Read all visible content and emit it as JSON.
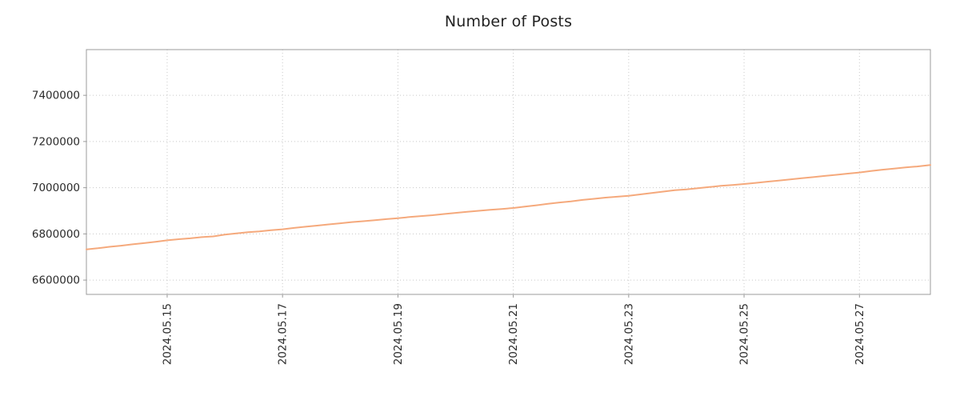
{
  "chart_data": {
    "type": "line",
    "title": "Number of Posts",
    "xlabel": "",
    "ylabel": "",
    "grid": true,
    "legend": false,
    "xlim": [
      13.6,
      28.23
    ],
    "ylim": [
      6538000,
      7598000
    ],
    "x_ticks": [
      {
        "value": 15,
        "label": "2024.05.15"
      },
      {
        "value": 17,
        "label": "2024.05.17"
      },
      {
        "value": 19,
        "label": "2024.05.19"
      },
      {
        "value": 21,
        "label": "2024.05.21"
      },
      {
        "value": 23,
        "label": "2024.05.23"
      },
      {
        "value": 25,
        "label": "2024.05.25"
      },
      {
        "value": 27,
        "label": "2024.05.27"
      }
    ],
    "y_ticks": [
      {
        "value": 6600000,
        "label": "6600000"
      },
      {
        "value": 6800000,
        "label": "6800000"
      },
      {
        "value": 7000000,
        "label": "7000000"
      },
      {
        "value": 7200000,
        "label": "7200000"
      },
      {
        "value": 7400000,
        "label": "7400000"
      }
    ],
    "colors": {
      "line": "#F5A97C",
      "grid": "#c8c8c8",
      "spine": "#9b9b9b",
      "text": "#2b2b2b"
    },
    "series": [
      {
        "name": "number-of-posts",
        "points": [
          [
            13.6,
            6733000
          ],
          [
            13.8,
            6738000
          ],
          [
            14.0,
            6744000
          ],
          [
            14.2,
            6749000
          ],
          [
            14.4,
            6755000
          ],
          [
            14.6,
            6760000
          ],
          [
            14.8,
            6766000
          ],
          [
            15.0,
            6772000
          ],
          [
            15.2,
            6777000
          ],
          [
            15.4,
            6781000
          ],
          [
            15.6,
            6786000
          ],
          [
            15.8,
            6789000
          ],
          [
            16.0,
            6797000
          ],
          [
            16.2,
            6802000
          ],
          [
            16.4,
            6807000
          ],
          [
            16.6,
            6811000
          ],
          [
            16.8,
            6816000
          ],
          [
            17.0,
            6820000
          ],
          [
            17.2,
            6826000
          ],
          [
            17.4,
            6831000
          ],
          [
            17.6,
            6836000
          ],
          [
            17.8,
            6841000
          ],
          [
            18.0,
            6846000
          ],
          [
            18.2,
            6851000
          ],
          [
            18.4,
            6855000
          ],
          [
            18.6,
            6859000
          ],
          [
            18.8,
            6864000
          ],
          [
            19.0,
            6868000
          ],
          [
            19.2,
            6873000
          ],
          [
            19.4,
            6877000
          ],
          [
            19.6,
            6881000
          ],
          [
            19.8,
            6886000
          ],
          [
            20.0,
            6891000
          ],
          [
            20.2,
            6896000
          ],
          [
            20.4,
            6900000
          ],
          [
            20.6,
            6904000
          ],
          [
            20.8,
            6908000
          ],
          [
            21.0,
            6912000
          ],
          [
            21.2,
            6918000
          ],
          [
            21.4,
            6924000
          ],
          [
            21.6,
            6930000
          ],
          [
            21.8,
            6936000
          ],
          [
            22.0,
            6941000
          ],
          [
            22.2,
            6947000
          ],
          [
            22.4,
            6952000
          ],
          [
            22.6,
            6957000
          ],
          [
            22.8,
            6961000
          ],
          [
            23.0,
            6965000
          ],
          [
            23.2,
            6971000
          ],
          [
            23.4,
            6977000
          ],
          [
            23.6,
            6983000
          ],
          [
            23.8,
            6989000
          ],
          [
            24.0,
            6993000
          ],
          [
            24.2,
            6998000
          ],
          [
            24.4,
            7003000
          ],
          [
            24.6,
            7008000
          ],
          [
            24.8,
            7012000
          ],
          [
            25.0,
            7016000
          ],
          [
            25.2,
            7021000
          ],
          [
            25.4,
            7026000
          ],
          [
            25.6,
            7031000
          ],
          [
            25.8,
            7036000
          ],
          [
            26.0,
            7041000
          ],
          [
            26.2,
            7046000
          ],
          [
            26.4,
            7051000
          ],
          [
            26.6,
            7056000
          ],
          [
            26.8,
            7061000
          ],
          [
            27.0,
            7066000
          ],
          [
            27.2,
            7072000
          ],
          [
            27.4,
            7078000
          ],
          [
            27.6,
            7083000
          ],
          [
            27.8,
            7088000
          ],
          [
            28.0,
            7092000
          ],
          [
            28.23,
            7098000
          ]
        ]
      }
    ]
  }
}
